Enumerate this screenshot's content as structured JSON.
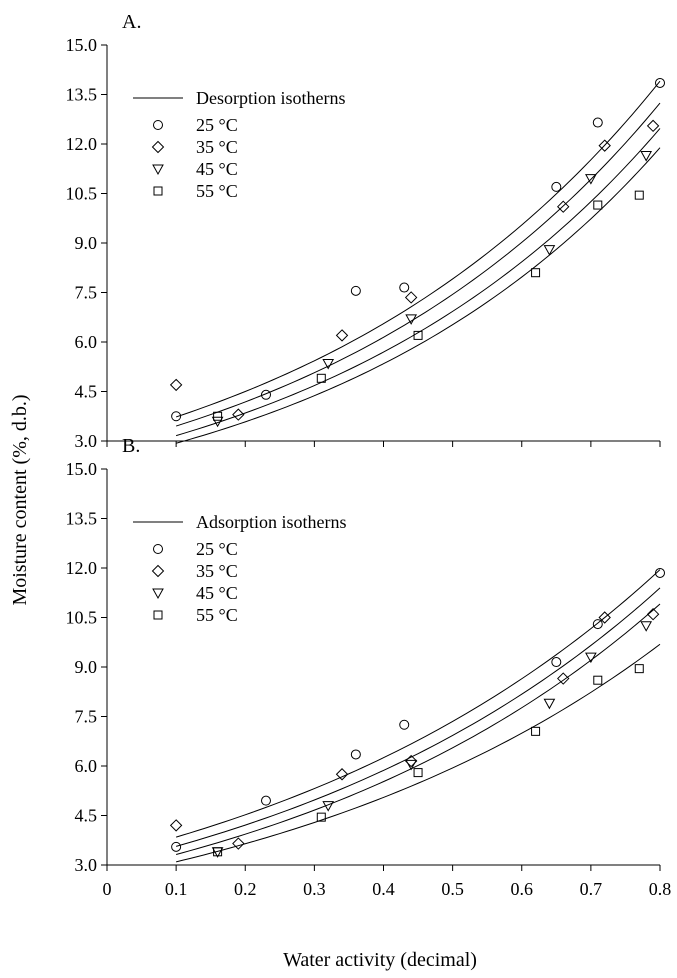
{
  "chart_data": [
    {
      "type": "scatter",
      "panel_label": "A.",
      "legend_title": "Desorption isotherns",
      "fit_type": "line",
      "xlim": [
        0,
        0.8
      ],
      "ylim": [
        3.0,
        15.0
      ],
      "x_ticks": [
        "0",
        "0.1",
        "0.2",
        "0.3",
        "0.4",
        "0.5",
        "0.6",
        "0.7",
        "0.8"
      ],
      "y_ticks": [
        "3.0",
        "4.5",
        "6.0",
        "7.5",
        "9.0",
        "10.5",
        "12.0",
        "13.5",
        "15.0"
      ],
      "show_x_tick_labels": false,
      "series": [
        {
          "name": "25 °C",
          "marker": "circle",
          "x": [
            0.1,
            0.23,
            0.36,
            0.43,
            0.65,
            0.71,
            0.8
          ],
          "y": [
            3.75,
            4.4,
            7.55,
            7.65,
            10.7,
            12.65,
            13.85
          ],
          "fit": {
            "a": 3.09,
            "b": 1.88
          }
        },
        {
          "name": "35 °C",
          "marker": "diamond",
          "x": [
            0.1,
            0.19,
            0.34,
            0.44,
            0.66,
            0.72,
            0.79
          ],
          "y": [
            4.7,
            3.8,
            6.2,
            7.35,
            10.1,
            11.95,
            12.55
          ],
          "fit": {
            "a": 2.85,
            "b": 1.92
          }
        },
        {
          "name": "45 °C",
          "marker": "triangle-down",
          "x": [
            0.16,
            0.32,
            0.44,
            0.64,
            0.7,
            0.78
          ],
          "y": [
            3.6,
            5.35,
            6.7,
            8.8,
            10.95,
            11.65
          ],
          "fit": {
            "a": 2.6,
            "b": 1.96
          }
        },
        {
          "name": "55 °C",
          "marker": "square",
          "x": [
            0.16,
            0.31,
            0.45,
            0.62,
            0.71,
            0.77
          ],
          "y": [
            3.75,
            4.9,
            6.2,
            8.1,
            10.15,
            10.45
          ],
          "fit": {
            "a": 2.4,
            "b": 2.0
          }
        }
      ]
    },
    {
      "type": "scatter",
      "panel_label": "B.",
      "legend_title": "Adsorption isotherns",
      "fit_type": "line",
      "xlim": [
        0,
        0.8
      ],
      "ylim": [
        3.0,
        15.0
      ],
      "x_ticks": [
        "0",
        "0.1",
        "0.2",
        "0.3",
        "0.4",
        "0.5",
        "0.6",
        "0.7",
        "0.8"
      ],
      "y_ticks": [
        "3.0",
        "4.5",
        "6.0",
        "7.5",
        "9.0",
        "10.5",
        "12.0",
        "13.5",
        "15.0"
      ],
      "show_x_tick_labels": true,
      "series": [
        {
          "name": "25 °C",
          "marker": "circle",
          "x": [
            0.1,
            0.23,
            0.36,
            0.43,
            0.65,
            0.71,
            0.8
          ],
          "y": [
            3.55,
            4.95,
            6.35,
            7.25,
            9.15,
            10.3,
            11.85
          ],
          "fit": {
            "a": 3.27,
            "b": 1.62
          }
        },
        {
          "name": "35 °C",
          "marker": "diamond",
          "x": [
            0.1,
            0.19,
            0.34,
            0.44,
            0.66,
            0.72,
            0.79
          ],
          "y": [
            4.2,
            3.65,
            5.75,
            6.15,
            8.65,
            10.5,
            10.6
          ],
          "fit": {
            "a": 3.02,
            "b": 1.66
          }
        },
        {
          "name": "45 °C",
          "marker": "triangle-down",
          "x": [
            0.16,
            0.32,
            0.44,
            0.64,
            0.7,
            0.78
          ],
          "y": [
            3.4,
            4.8,
            6.05,
            7.9,
            9.3,
            10.25
          ],
          "fit": {
            "a": 2.8,
            "b": 1.7
          }
        },
        {
          "name": "55 °C",
          "marker": "square",
          "x": [
            0.16,
            0.31,
            0.45,
            0.62,
            0.71,
            0.77
          ],
          "y": [
            3.4,
            4.45,
            5.8,
            7.05,
            8.6,
            8.95
          ],
          "fit": {
            "a": 2.63,
            "b": 1.63
          }
        }
      ]
    }
  ],
  "shared_axes": {
    "ylabel": "Moisture content (%, d.b.)",
    "xlabel": "Water activity (decimal)"
  }
}
